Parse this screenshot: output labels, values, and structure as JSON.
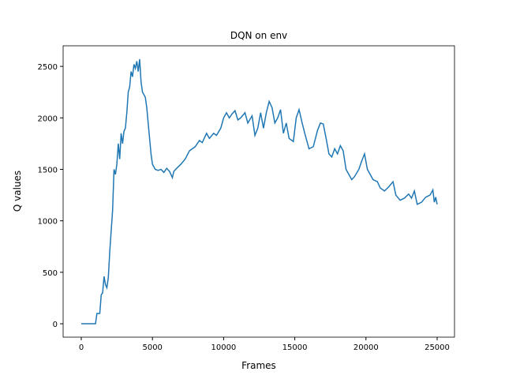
{
  "chart_data": {
    "type": "line",
    "title": "DQN on env",
    "x_label": "Frames",
    "y_label": "Q values",
    "xlim": [
      -1275,
      26220
    ],
    "ylim": [
      -130,
      2700
    ],
    "xticks": [
      0,
      5000,
      10000,
      15000,
      20000,
      25000
    ],
    "yticks": [
      0,
      500,
      1000,
      1500,
      2000,
      2500
    ],
    "grid": false,
    "x": [
      0,
      500,
      1000,
      1100,
      1300,
      1400,
      1500,
      1600,
      1700,
      1800,
      1900,
      2000,
      2100,
      2200,
      2300,
      2400,
      2500,
      2600,
      2700,
      2800,
      2900,
      3000,
      3100,
      3200,
      3300,
      3400,
      3500,
      3600,
      3700,
      3800,
      3900,
      4000,
      4100,
      4200,
      4300,
      4500,
      4600,
      4700,
      4800,
      4900,
      5000,
      5200,
      5400,
      5600,
      5800,
      6000,
      6200,
      6400,
      6500,
      6700,
      7000,
      7300,
      7600,
      8000,
      8300,
      8500,
      8800,
      9000,
      9300,
      9500,
      9800,
      10000,
      10200,
      10400,
      10600,
      10800,
      11000,
      11200,
      11500,
      11700,
      12000,
      12200,
      12400,
      12600,
      12800,
      13000,
      13200,
      13400,
      13600,
      13800,
      14000,
      14200,
      14400,
      14600,
      14900,
      15100,
      15300,
      15500,
      15700,
      16000,
      16300,
      16600,
      16800,
      17000,
      17200,
      17400,
      17600,
      17800,
      18000,
      18200,
      18400,
      18600,
      18800,
      19000,
      19200,
      19500,
      19700,
      19900,
      20100,
      20300,
      20500,
      20800,
      21000,
      21300,
      21600,
      21900,
      22100,
      22400,
      22700,
      23000,
      23200,
      23400,
      23600,
      23900,
      24200,
      24500,
      24700,
      24800,
      24900,
      25000
    ],
    "series": [
      {
        "name": "Q",
        "color": "#1f77b4",
        "values": [
          0,
          0,
          0,
          100,
          100,
          280,
          300,
          460,
          380,
          350,
          450,
          700,
          900,
          1100,
          1500,
          1450,
          1550,
          1750,
          1600,
          1850,
          1750,
          1870,
          1900,
          2050,
          2250,
          2300,
          2450,
          2400,
          2520,
          2480,
          2550,
          2450,
          2570,
          2350,
          2250,
          2200,
          2100,
          1950,
          1800,
          1650,
          1550,
          1500,
          1490,
          1500,
          1470,
          1510,
          1480,
          1420,
          1480,
          1510,
          1550,
          1600,
          1680,
          1720,
          1780,
          1760,
          1850,
          1800,
          1850,
          1830,
          1900,
          2000,
          2050,
          2000,
          2040,
          2070,
          1980,
          2000,
          2050,
          1950,
          2020,
          1830,
          1900,
          2050,
          1900,
          2050,
          2160,
          2100,
          1950,
          2000,
          2080,
          1850,
          1950,
          1800,
          1770,
          2000,
          2080,
          1960,
          1850,
          1700,
          1720,
          1880,
          1950,
          1940,
          1800,
          1650,
          1620,
          1700,
          1650,
          1730,
          1680,
          1500,
          1450,
          1400,
          1430,
          1500,
          1580,
          1650,
          1500,
          1450,
          1400,
          1380,
          1320,
          1290,
          1330,
          1380,
          1250,
          1200,
          1220,
          1260,
          1220,
          1290,
          1160,
          1180,
          1230,
          1250,
          1300,
          1180,
          1230,
          1160
        ]
      }
    ]
  }
}
